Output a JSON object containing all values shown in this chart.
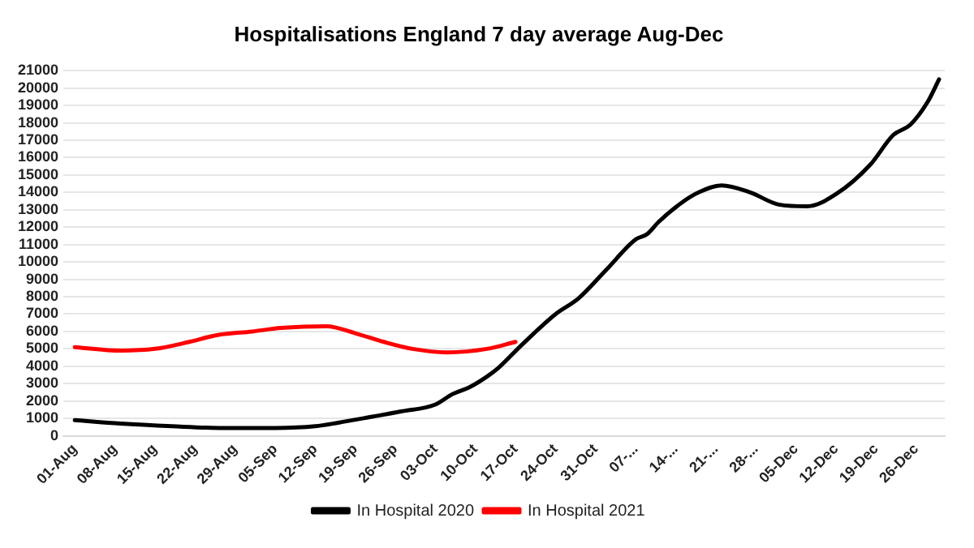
{
  "chart_data": {
    "type": "line",
    "title": "Hospitalisations England 7 day average Aug-Dec",
    "xlim": [
      "--07-30",
      "--12-31"
    ],
    "xticks": [
      {
        "value": "--08-01",
        "label": "01-Aug"
      },
      {
        "value": "--08-08",
        "label": "08-Aug"
      },
      {
        "value": "--08-15",
        "label": "15-Aug"
      },
      {
        "value": "--08-22",
        "label": "22-Aug"
      },
      {
        "value": "--08-29",
        "label": "29-Aug"
      },
      {
        "value": "--09-05",
        "label": "05-Sep"
      },
      {
        "value": "--09-12",
        "label": "12-Sep"
      },
      {
        "value": "--09-19",
        "label": "19-Sep"
      },
      {
        "value": "--09-26",
        "label": "26-Sep"
      },
      {
        "value": "--10-03",
        "label": "03-Oct"
      },
      {
        "value": "--10-10",
        "label": "10-Oct"
      },
      {
        "value": "--10-17",
        "label": "17-Oct"
      },
      {
        "value": "--10-24",
        "label": "24-Oct"
      },
      {
        "value": "--10-31",
        "label": "31-Oct"
      },
      {
        "value": "--11-07",
        "label": "07-..."
      },
      {
        "value": "--11-14",
        "label": "14-..."
      },
      {
        "value": "--11-21",
        "label": "21-..."
      },
      {
        "value": "--11-28",
        "label": "28-..."
      },
      {
        "value": "--12-05",
        "label": "05-Dec"
      },
      {
        "value": "--12-12",
        "label": "12-Dec"
      },
      {
        "value": "--12-19",
        "label": "19-Dec"
      },
      {
        "value": "--12-26",
        "label": "26-Dec"
      }
    ],
    "ylim": [
      0,
      21000
    ],
    "yticks": [
      0,
      1000,
      2000,
      3000,
      4000,
      5000,
      6000,
      7000,
      8000,
      9000,
      10000,
      11000,
      12000,
      13000,
      14000,
      15000,
      16000,
      17000,
      18000,
      19000,
      20000,
      21000
    ],
    "grid": "y",
    "legend": "bottom",
    "marker": "none",
    "line_style": "solid",
    "series": [
      {
        "name": "In Hospital 2020",
        "color": "#000000",
        "x": [
          "--08-01",
          "--08-09",
          "--08-18",
          "--08-27",
          "--09-05",
          "--09-12",
          "--09-16",
          "--09-22",
          "--09-27",
          "--10-03",
          "--10-06",
          "--10-09",
          "--10-12",
          "--10-14",
          "--10-18",
          "--10-24",
          "--10-28",
          "--11-02",
          "--11-07",
          "--11-09",
          "--11-11",
          "--11-15",
          "--11-18",
          "--11-22",
          "--11-27",
          "--12-02",
          "--12-07",
          "--12-12",
          "--12-18",
          "--12-22",
          "--12-25",
          "--12-28",
          "--12-30"
        ],
        "values": [
          900,
          700,
          550,
          450,
          450,
          550,
          750,
          1100,
          1400,
          1800,
          2400,
          2800,
          3400,
          3900,
          5200,
          7000,
          7900,
          9600,
          11300,
          11600,
          12300,
          13400,
          14000,
          14400,
          14000,
          13300,
          13200,
          13900,
          15600,
          17300,
          17900,
          19200,
          20500
        ]
      },
      {
        "name": "In Hospital 2021",
        "color": "#ff0000",
        "x": [
          "--08-01",
          "--08-09",
          "--08-15",
          "--08-21",
          "--08-26",
          "--09-01",
          "--09-06",
          "--09-14",
          "--09-19",
          "--09-24",
          "--09-29",
          "--10-05",
          "--10-12",
          "--10-17"
        ],
        "values": [
          5100,
          4900,
          5000,
          5400,
          5800,
          6000,
          6200,
          6300,
          5900,
          5400,
          5000,
          4800,
          5000,
          5400
        ]
      }
    ]
  }
}
